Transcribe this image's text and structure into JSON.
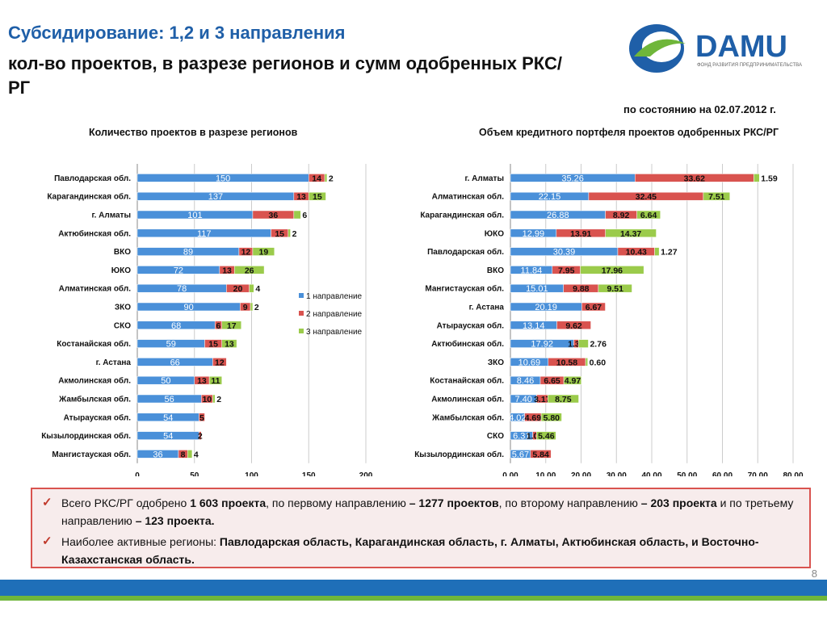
{
  "header": {
    "title_line1": "Субсидирование: 1,2 и 3 направления",
    "title_line2": "кол-во проектов, в разрезе регионов и сумм одобренных РКС/РГ",
    "as_of": "по состоянию на 02.07.2012 г."
  },
  "logo": {
    "text": "DAMU",
    "subtitle": "ФОНД РАЗВИТИЯ ПРЕДПРИНИМАТЕЛЬСТВА",
    "color": "#1f5fa8",
    "accent": "#6fb63a"
  },
  "colors": {
    "series1": "#4a90d9",
    "series2": "#d9534f",
    "series3": "#9bcb4b"
  },
  "chart_data": [
    {
      "type": "bar",
      "orientation": "horizontal",
      "stacked": true,
      "title": "Количество проектов в разрезе регионов",
      "categories": [
        "Павлодарская обл.",
        "Карагандинская обл.",
        "г. Алматы",
        "Актюбинская обл.",
        "ВКО",
        "ЮКО",
        "Алматинская обл.",
        "ЗКО",
        "СКО",
        "Костанайская обл.",
        "г. Астана",
        "Акмолинская обл.",
        "Жамбылская обл.",
        "Атырауская обл.",
        "Кызылординская обл.",
        "Мангистауская обл."
      ],
      "series": [
        {
          "name": "1 направление",
          "values": [
            150,
            137,
            101,
            117,
            89,
            72,
            78,
            90,
            68,
            59,
            66,
            50,
            56,
            54,
            54,
            36
          ]
        },
        {
          "name": "2 направление",
          "values": [
            14,
            13,
            36,
            15,
            12,
            13,
            20,
            9,
            6,
            15,
            12,
            13,
            10,
            5,
            2,
            8
          ]
        },
        {
          "name": "3 направление",
          "values": [
            2,
            15,
            6,
            2,
            19,
            26,
            4,
            2,
            17,
            13,
            0,
            11,
            2,
            0,
            0,
            4
          ]
        }
      ],
      "labels": [
        [
          "150",
          "14",
          "2"
        ],
        [
          "137",
          "13",
          "15"
        ],
        [
          "101",
          "36",
          "6"
        ],
        [
          "117",
          "15",
          "2"
        ],
        [
          "89",
          "12",
          "19"
        ],
        [
          "72",
          "13",
          "26"
        ],
        [
          "78",
          "20",
          "4"
        ],
        [
          "90",
          "9",
          "2"
        ],
        [
          "68",
          "6",
          "17"
        ],
        [
          "59",
          "15",
          "13"
        ],
        [
          "66",
          "12",
          ""
        ],
        [
          "50",
          "13",
          "11"
        ],
        [
          "56",
          "10",
          "2"
        ],
        [
          "54",
          "5",
          ""
        ],
        [
          "54",
          "2",
          ""
        ],
        [
          "36",
          "8",
          "4"
        ]
      ],
      "xlim": [
        0,
        200
      ],
      "xticks": [
        "0",
        "50",
        "100",
        "150",
        "200"
      ],
      "legend": [
        "1 направление",
        "2 направление",
        "3 направление"
      ],
      "grid": true
    },
    {
      "type": "bar",
      "orientation": "horizontal",
      "stacked": true,
      "title": "Объем кредитного портфеля проектов одобренных РКС/РГ",
      "categories": [
        "г. Алматы",
        "Алматинская обл.",
        "Карагандинская обл.",
        "ЮКО",
        "Павлодарская обл.",
        "ВКО",
        "Мангистауская обл.",
        "г. Астана",
        "Атырауская обл.",
        "Актюбинская обл.",
        "ЗКО",
        "Костанайская обл.",
        "Акмолинская обл.",
        "Жамбылская обл.",
        "СКО",
        "Кызылординская обл."
      ],
      "series": [
        {
          "name": "1 направление",
          "values": [
            35.26,
            22.15,
            26.88,
            12.99,
            30.39,
            11.84,
            15.01,
            20.19,
            13.14,
            17.92,
            10.69,
            8.46,
            7.4,
            4.02,
            6.31,
            5.67
          ]
        },
        {
          "name": "2 направление",
          "values": [
            33.62,
            32.45,
            8.92,
            13.91,
            10.43,
            7.95,
            9.88,
            6.67,
            9.62,
            1.37,
            10.58,
            6.65,
            3.17,
            4.69,
            1.09,
            5.84
          ]
        },
        {
          "name": "3 направление",
          "values": [
            1.59,
            7.51,
            6.64,
            14.37,
            1.27,
            17.96,
            9.51,
            0,
            0,
            2.76,
            0.6,
            4.97,
            8.75,
            5.8,
            5.46,
            0
          ]
        }
      ],
      "labels": [
        [
          "35.26",
          "33.62",
          "1.59"
        ],
        [
          "22.15",
          "32.45",
          "7.51"
        ],
        [
          "26.88",
          "8.92",
          "6.64"
        ],
        [
          "12.99",
          "13.91",
          "14.37"
        ],
        [
          "30.39",
          "10.43",
          "1.27"
        ],
        [
          "11.84",
          "7.95",
          "17.96"
        ],
        [
          "15.01",
          "9.88",
          "9.51"
        ],
        [
          "20.19",
          "6.67",
          ""
        ],
        [
          "13.14",
          "9.62",
          ""
        ],
        [
          "17.92",
          "1.37",
          "2.76"
        ],
        [
          "10.69",
          "10.58",
          "0.60"
        ],
        [
          "8.46",
          "6.65",
          "4.97"
        ],
        [
          "7.40",
          "3.17",
          "8.75"
        ],
        [
          "4.02",
          "4.69",
          "5.80"
        ],
        [
          "6.31",
          "1.09",
          "5.46"
        ],
        [
          "5.67",
          "5.84",
          ""
        ]
      ],
      "xlim": [
        0,
        80
      ],
      "xticks": [
        "0.00",
        "10.00",
        "20.00",
        "30.00",
        "40.00",
        "50.00",
        "60.00",
        "70.00",
        "80.00"
      ],
      "grid": true
    }
  ],
  "summary": {
    "item1_pre": "Всего РКС/РГ одобрено ",
    "item1_b1": "1 603 проекта",
    "item1_mid1": ", по первому направлению ",
    "item1_b2": "– 1277 проектов",
    "item1_mid2": ", по второму направлению ",
    "item1_b3": "– 203 проекта",
    "item1_mid3": " и по третьему направлению ",
    "item1_b4": "– 123 проекта.",
    "item2_pre": "Наиболее активные регионы: ",
    "item2_b": "Павлодарская область, Карагандинская область, г. Алматы, Актюбинская область, и Восточно-Казахстанская область."
  },
  "page_number": "8"
}
